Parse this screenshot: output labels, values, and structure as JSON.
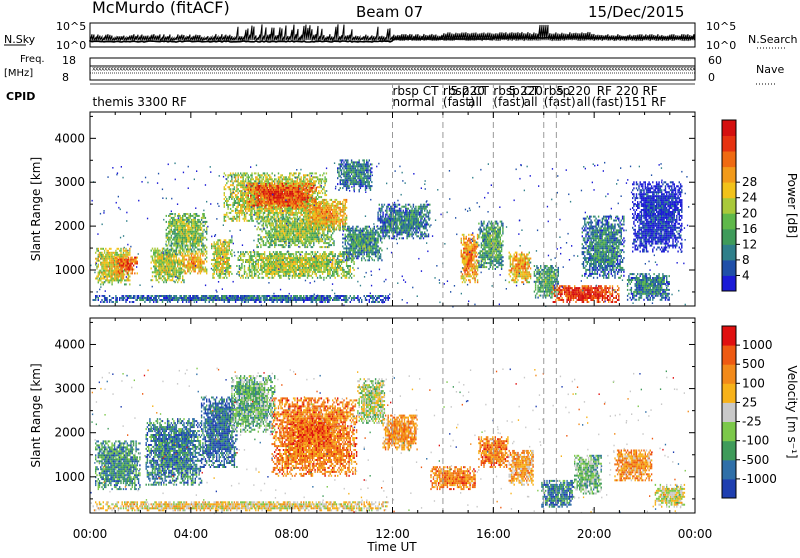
{
  "header": {
    "station": "McMurdo (fitACF)",
    "beam": "Beam 07",
    "date": "15/Dec/2015"
  },
  "strip_labels": {
    "nsky": "N.Sky",
    "nsky_ticks": [
      "10^5",
      "10^0"
    ],
    "nsearch": "N.Search",
    "nsearch_ticks": [
      "10^5",
      "10^0"
    ],
    "freq_label_1": "Freq.",
    "freq_label_2": "[MHz]",
    "freq_ticks": [
      "18",
      "8"
    ],
    "nave": "Nave",
    "nave_ticks": [
      "60",
      "0"
    ],
    "cpid": "CPID"
  },
  "cpid_labels": [
    {
      "text": "themis 3300 RF",
      "hour": 0.1,
      "row": 1
    },
    {
      "text": "rbsp CT",
      "hour": 12.0,
      "row": 0
    },
    {
      "text": "normal",
      "hour": 12.0,
      "row": 1
    },
    {
      "text": "rbsp CT",
      "hour": 14.0,
      "row": 0
    },
    {
      "text": "(fast)",
      "hour": 14.0,
      "row": 1
    },
    {
      "text": "5 220",
      "hour": 14.3,
      "row": 0
    },
    {
      "text": "all",
      "hour": 15.0,
      "row": 1
    },
    {
      "text": "rbsp CT",
      "hour": 16.0,
      "row": 0
    },
    {
      "text": "(fast)",
      "hour": 16.0,
      "row": 1
    },
    {
      "text": "5 220",
      "hour": 16.6,
      "row": 0
    },
    {
      "text": "all",
      "hour": 17.2,
      "row": 1
    },
    {
      "text": "rbsp",
      "hour": 18.0,
      "row": 0
    },
    {
      "text": "(fast)",
      "hour": 18.0,
      "row": 1
    },
    {
      "text": "5 220",
      "hour": 18.5,
      "row": 0
    },
    {
      "text": "all",
      "hour": 19.3,
      "row": 1
    },
    {
      "text": "RF 220 RF",
      "hour": 20.1,
      "row": 0
    },
    {
      "text": "(fast)",
      "hour": 19.9,
      "row": 1
    },
    {
      "text": "151 RF",
      "hour": 21.2,
      "row": 1
    }
  ],
  "chart_data": [
    {
      "type": "heatmap",
      "title": "",
      "xlabel": "Time UT",
      "ylabel": "Slant Range [km]",
      "xlim_hours": [
        0,
        24
      ],
      "ylim": [
        180,
        4600
      ],
      "x_ticks": [
        "00:00",
        "04:00",
        "08:00",
        "12:00",
        "16:00",
        "20:00",
        "00:00"
      ],
      "y_ticks": [
        1000,
        2000,
        3000,
        4000
      ],
      "colorbar": {
        "label": "Power [dB]",
        "ticks": [
          4,
          8,
          12,
          16,
          20,
          24,
          28
        ],
        "colors": [
          "#1b1bd6",
          "#1f4fa8",
          "#2f7f8a",
          "#3f9b5a",
          "#5fb84a",
          "#a9c93a",
          "#f2c21a",
          "#f29a1a",
          "#ef6a12",
          "#e63210",
          "#d40f0f"
        ]
      },
      "cpid_change_hours": [
        12.0,
        14.0,
        16.0,
        18.0,
        18.5
      ],
      "regions": [
        {
          "t0": 0.1,
          "t1": 11.9,
          "r0": 250,
          "r1": 420,
          "level": 0.25
        },
        {
          "t0": 0.2,
          "t1": 1.6,
          "r0": 650,
          "r1": 1500,
          "level": 0.6
        },
        {
          "t0": 1.0,
          "t1": 1.9,
          "r0": 900,
          "r1": 1300,
          "level": 0.85
        },
        {
          "t0": 2.4,
          "t1": 3.7,
          "r0": 700,
          "r1": 1500,
          "level": 0.55
        },
        {
          "t0": 3.0,
          "t1": 4.6,
          "r0": 1400,
          "r1": 2300,
          "level": 0.5
        },
        {
          "t0": 3.6,
          "t1": 4.6,
          "r0": 900,
          "r1": 1400,
          "level": 0.7
        },
        {
          "t0": 4.8,
          "t1": 5.6,
          "r0": 800,
          "r1": 1700,
          "level": 0.6
        },
        {
          "t0": 5.3,
          "t1": 9.4,
          "r0": 2100,
          "r1": 3200,
          "level": 0.6
        },
        {
          "t0": 6.2,
          "t1": 9.0,
          "r0": 2400,
          "r1": 2950,
          "level": 0.9
        },
        {
          "t0": 5.8,
          "t1": 10.5,
          "r0": 800,
          "r1": 1400,
          "level": 0.55
        },
        {
          "t0": 6.6,
          "t1": 9.7,
          "r0": 1500,
          "r1": 2200,
          "level": 0.5
        },
        {
          "t0": 8.5,
          "t1": 10.2,
          "r0": 1900,
          "r1": 2600,
          "level": 0.7
        },
        {
          "t0": 9.8,
          "t1": 11.2,
          "r0": 2800,
          "r1": 3500,
          "level": 0.3
        },
        {
          "t0": 10.0,
          "t1": 11.6,
          "r0": 1200,
          "r1": 2000,
          "level": 0.35
        },
        {
          "t0": 11.4,
          "t1": 13.5,
          "r0": 1700,
          "r1": 2500,
          "level": 0.3
        },
        {
          "t0": 14.7,
          "t1": 15.4,
          "r0": 700,
          "r1": 1800,
          "level": 0.75
        },
        {
          "t0": 15.4,
          "t1": 16.4,
          "r0": 1000,
          "r1": 2100,
          "level": 0.4
        },
        {
          "t0": 16.6,
          "t1": 17.5,
          "r0": 700,
          "r1": 1400,
          "level": 0.7
        },
        {
          "t0": 17.6,
          "t1": 18.6,
          "r0": 350,
          "r1": 1100,
          "level": 0.4
        },
        {
          "t0": 18.3,
          "t1": 21.0,
          "r0": 250,
          "r1": 650,
          "level": 0.95
        },
        {
          "t0": 19.5,
          "t1": 21.2,
          "r0": 800,
          "r1": 2200,
          "level": 0.3
        },
        {
          "t0": 21.3,
          "t1": 23.0,
          "r0": 300,
          "r1": 900,
          "level": 0.3
        },
        {
          "t0": 21.5,
          "t1": 23.5,
          "r0": 1400,
          "r1": 3000,
          "level": 0.12
        }
      ]
    },
    {
      "type": "heatmap",
      "title": "",
      "xlabel": "Time UT",
      "ylabel": "Slant Range [km]",
      "xlim_hours": [
        0,
        24
      ],
      "ylim": [
        180,
        4600
      ],
      "x_ticks": [
        "00:00",
        "04:00",
        "08:00",
        "12:00",
        "16:00",
        "20:00",
        "00:00"
      ],
      "y_ticks": [
        1000,
        2000,
        3000,
        4000
      ],
      "colorbar": {
        "label": "Velocity [m s⁻¹]",
        "ticks": [
          1000,
          500,
          100,
          25,
          -25,
          -100,
          -500,
          -1000
        ],
        "colors": [
          "#1f3fb0",
          "#2f6fa8",
          "#3f9b5a",
          "#7cc84a",
          "#c9c9c9",
          "#f7b21a",
          "#f28a1a",
          "#ee5a12",
          "#e01010"
        ]
      },
      "regions": [
        {
          "t0": 0.1,
          "t1": 11.9,
          "r0": 220,
          "r1": 420,
          "level": 0.55
        },
        {
          "t0": 0.2,
          "t1": 2.0,
          "r0": 700,
          "r1": 1800,
          "level": 0.25
        },
        {
          "t0": 2.2,
          "t1": 4.4,
          "r0": 800,
          "r1": 2300,
          "level": 0.2
        },
        {
          "t0": 4.4,
          "t1": 5.8,
          "r0": 1200,
          "r1": 2800,
          "level": 0.15
        },
        {
          "t0": 5.6,
          "t1": 7.3,
          "r0": 2000,
          "r1": 3300,
          "level": 0.35
        },
        {
          "t0": 7.2,
          "t1": 10.6,
          "r0": 1000,
          "r1": 2800,
          "level": 0.75
        },
        {
          "t0": 8.0,
          "t1": 9.6,
          "r0": 1700,
          "r1": 2300,
          "level": 0.8
        },
        {
          "t0": 10.6,
          "t1": 11.7,
          "r0": 2200,
          "r1": 3200,
          "level": 0.45
        },
        {
          "t0": 11.6,
          "t1": 13.0,
          "r0": 1600,
          "r1": 2400,
          "level": 0.7
        },
        {
          "t0": 13.5,
          "t1": 15.3,
          "r0": 700,
          "r1": 1200,
          "level": 0.75
        },
        {
          "t0": 15.4,
          "t1": 16.6,
          "r0": 1200,
          "r1": 1900,
          "level": 0.75
        },
        {
          "t0": 16.6,
          "t1": 17.6,
          "r0": 800,
          "r1": 1600,
          "level": 0.65
        },
        {
          "t0": 17.9,
          "t1": 19.2,
          "r0": 300,
          "r1": 900,
          "level": 0.2
        },
        {
          "t0": 19.2,
          "t1": 20.3,
          "r0": 600,
          "r1": 1500,
          "level": 0.35
        },
        {
          "t0": 20.8,
          "t1": 22.3,
          "r0": 900,
          "r1": 1600,
          "level": 0.7
        },
        {
          "t0": 22.4,
          "t1": 23.6,
          "r0": 300,
          "r1": 800,
          "level": 0.5
        }
      ]
    }
  ]
}
